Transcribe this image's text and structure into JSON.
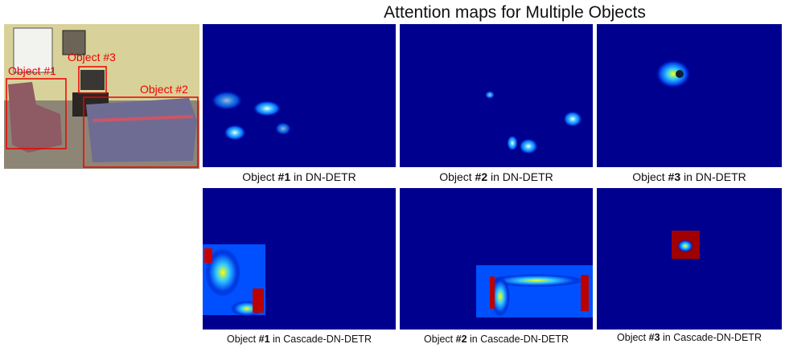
{
  "title": "Attention maps for Multiple Objects",
  "photo": {
    "labels": [
      "Object #1",
      "Object #2",
      "Object #3"
    ]
  },
  "panels": [
    {
      "caption": {
        "prefix": "Object",
        "bold": "#1",
        "suffix": "in DN-DETR"
      }
    },
    {
      "caption": {
        "prefix": "Object",
        "bold": "#2",
        "suffix": "in DN-DETR"
      }
    },
    {
      "caption": {
        "prefix": "Object",
        "bold": "#3",
        "suffix": "in DN-DETR"
      }
    },
    {
      "caption": {
        "prefix": "Object",
        "bold": "#1",
        "suffix": "in Cascade-DN-DETR"
      }
    },
    {
      "caption": {
        "prefix": "Object",
        "bold": "#2",
        "suffix": "in Cascade-DN-DETR"
      }
    },
    {
      "caption": {
        "prefix": "Object",
        "bold": "#3",
        "suffix": "in Cascade-DN-DETR"
      }
    }
  ]
}
